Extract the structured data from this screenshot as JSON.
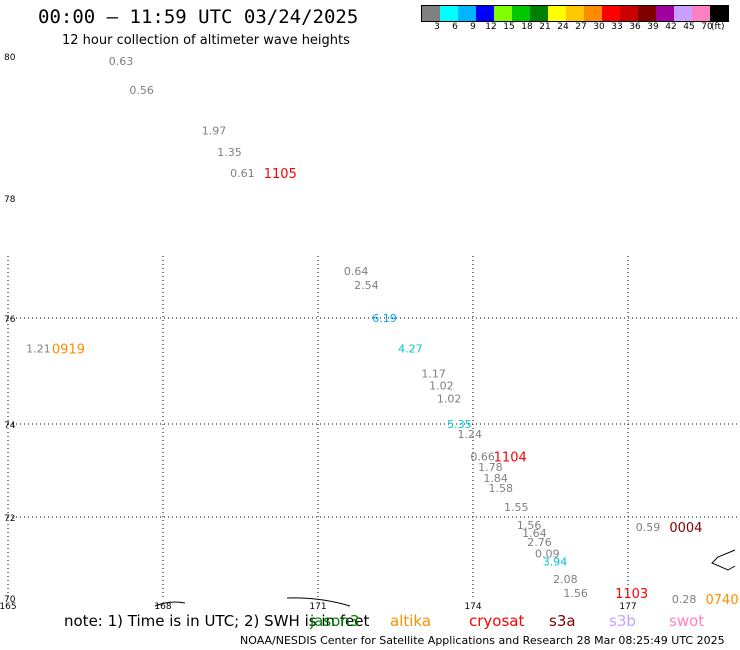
{
  "header": {
    "title": "00:00 – 11:59 UTC 03/24/2025",
    "subtitle": "12 hour collection of altimeter wave heights"
  },
  "colorbar": {
    "unit": "(ft)",
    "entries": [
      {
        "label": "3",
        "color": "#808080"
      },
      {
        "label": "6",
        "color": "#00ffff"
      },
      {
        "label": "9",
        "color": "#00b4ff"
      },
      {
        "label": "12",
        "color": "#0000ff"
      },
      {
        "label": "15",
        "color": "#7fff00"
      },
      {
        "label": "18",
        "color": "#00c800"
      },
      {
        "label": "21",
        "color": "#008000"
      },
      {
        "label": "24",
        "color": "#ffff00"
      },
      {
        "label": "27",
        "color": "#ffc800"
      },
      {
        "label": "30",
        "color": "#ff8c00"
      },
      {
        "label": "33",
        "color": "#ff0000"
      },
      {
        "label": "36",
        "color": "#c80000"
      },
      {
        "label": "39",
        "color": "#800000"
      },
      {
        "label": "42",
        "color": "#a000a0"
      },
      {
        "label": "45",
        "color": "#c8a0ff"
      },
      {
        "label": "70",
        "color": "#ff80c0"
      },
      {
        "label": "",
        "color": "#000000"
      }
    ]
  },
  "map": {
    "lat_labels": [
      "80",
      "78",
      "76",
      "74",
      "72",
      "70"
    ],
    "lon_labels": [
      "165",
      "168",
      "171",
      "174",
      "177"
    ],
    "wave_heights": [
      {
        "value": "0.63",
        "lat": 79.93,
        "lon": 166.95,
        "color": "#808080"
      },
      {
        "value": "0.56",
        "lat": 79.52,
        "lon": 167.35,
        "color": "#808080"
      },
      {
        "value": "1.97",
        "lat": 78.95,
        "lon": 168.75,
        "color": "#808080"
      },
      {
        "value": "1.35",
        "lat": 78.65,
        "lon": 169.05,
        "color": "#808080"
      },
      {
        "value": "0.61",
        "lat": 78.35,
        "lon": 169.3,
        "color": "#808080"
      },
      {
        "value": "0.64",
        "lat": 76.78,
        "lon": 171.5,
        "color": "#808080"
      },
      {
        "value": "2.54",
        "lat": 76.55,
        "lon": 171.7,
        "color": "#808080"
      },
      {
        "value": "6.19",
        "lat": 76.0,
        "lon": 172.05,
        "color": "#00a0ff"
      },
      {
        "value": "1.21",
        "lat": 75.42,
        "lon": 165.35,
        "color": "#808080"
      },
      {
        "value": "4.27",
        "lat": 75.42,
        "lon": 172.55,
        "color": "#00c8c8"
      },
      {
        "value": "1.17",
        "lat": 74.95,
        "lon": 173.0,
        "color": "#808080"
      },
      {
        "value": "1.02",
        "lat": 74.73,
        "lon": 173.15,
        "color": "#808080"
      },
      {
        "value": "1.02",
        "lat": 74.48,
        "lon": 173.3,
        "color": "#808080"
      },
      {
        "value": "5.35",
        "lat": 74.0,
        "lon": 173.5,
        "color": "#00c8c8"
      },
      {
        "value": "1.24",
        "lat": 73.78,
        "lon": 173.7,
        "color": "#808080"
      },
      {
        "value": "0.66",
        "lat": 73.3,
        "lon": 173.95,
        "color": "#808080"
      },
      {
        "value": "1.78",
        "lat": 73.08,
        "lon": 174.1,
        "color": "#808080"
      },
      {
        "value": "1.84",
        "lat": 72.84,
        "lon": 174.2,
        "color": "#808080"
      },
      {
        "value": "1.58",
        "lat": 72.62,
        "lon": 174.3,
        "color": "#808080"
      },
      {
        "value": "1.55",
        "lat": 72.22,
        "lon": 174.6,
        "color": "#808080"
      },
      {
        "value": "1.56",
        "lat": 71.8,
        "lon": 174.85,
        "color": "#808080"
      },
      {
        "value": "1.64",
        "lat": 71.6,
        "lon": 174.95,
        "color": "#808080"
      },
      {
        "value": "2.76",
        "lat": 71.38,
        "lon": 175.05,
        "color": "#808080"
      },
      {
        "value": "0.09",
        "lat": 71.1,
        "lon": 175.2,
        "color": "#808080"
      },
      {
        "value": "3.94",
        "lat": 70.9,
        "lon": 175.35,
        "color": "#00c8c8"
      },
      {
        "value": "2.08",
        "lat": 70.47,
        "lon": 175.55,
        "color": "#808080"
      },
      {
        "value": "1.56",
        "lat": 70.12,
        "lon": 175.75,
        "color": "#808080"
      },
      {
        "value": "0.59",
        "lat": 71.75,
        "lon": 177.15,
        "color": "#808080"
      },
      {
        "value": "0.28",
        "lat": 69.98,
        "lon": 177.85,
        "color": "#808080"
      }
    ],
    "pass_times": [
      {
        "label": "1105",
        "lat": 78.35,
        "lon": 169.95,
        "color": "#ff0000"
      },
      {
        "label": "0919",
        "lat": 75.42,
        "lon": 165.85,
        "color": "#ff8c00"
      },
      {
        "label": "1104",
        "lat": 73.3,
        "lon": 174.4,
        "color": "#ff0000"
      },
      {
        "label": "0004",
        "lat": 71.75,
        "lon": 177.8,
        "color": "#800000"
      },
      {
        "label": "1103",
        "lat": 70.12,
        "lon": 176.75,
        "color": "#ff0000"
      },
      {
        "label": "0740",
        "lat": 69.98,
        "lon": 178.5,
        "color": "#ff8c00"
      }
    ]
  },
  "footer": {
    "note": "note: 1) Time is in UTC; 2) SWH is in feet",
    "satellites": [
      {
        "name": "jason3",
        "color": "#008000"
      },
      {
        "name": "altika",
        "color": "#ff8c00"
      },
      {
        "name": "cryosat",
        "color": "#ff0000"
      },
      {
        "name": "s3a",
        "color": "#800000"
      },
      {
        "name": "s3b",
        "color": "#c8a0ff"
      },
      {
        "name": "swot",
        "color": "#ff80c0"
      }
    ],
    "credit": "NOAA/NESDIS Center for Satellite Applications and Research    28 Mar 08:25:49 UTC 2025"
  }
}
